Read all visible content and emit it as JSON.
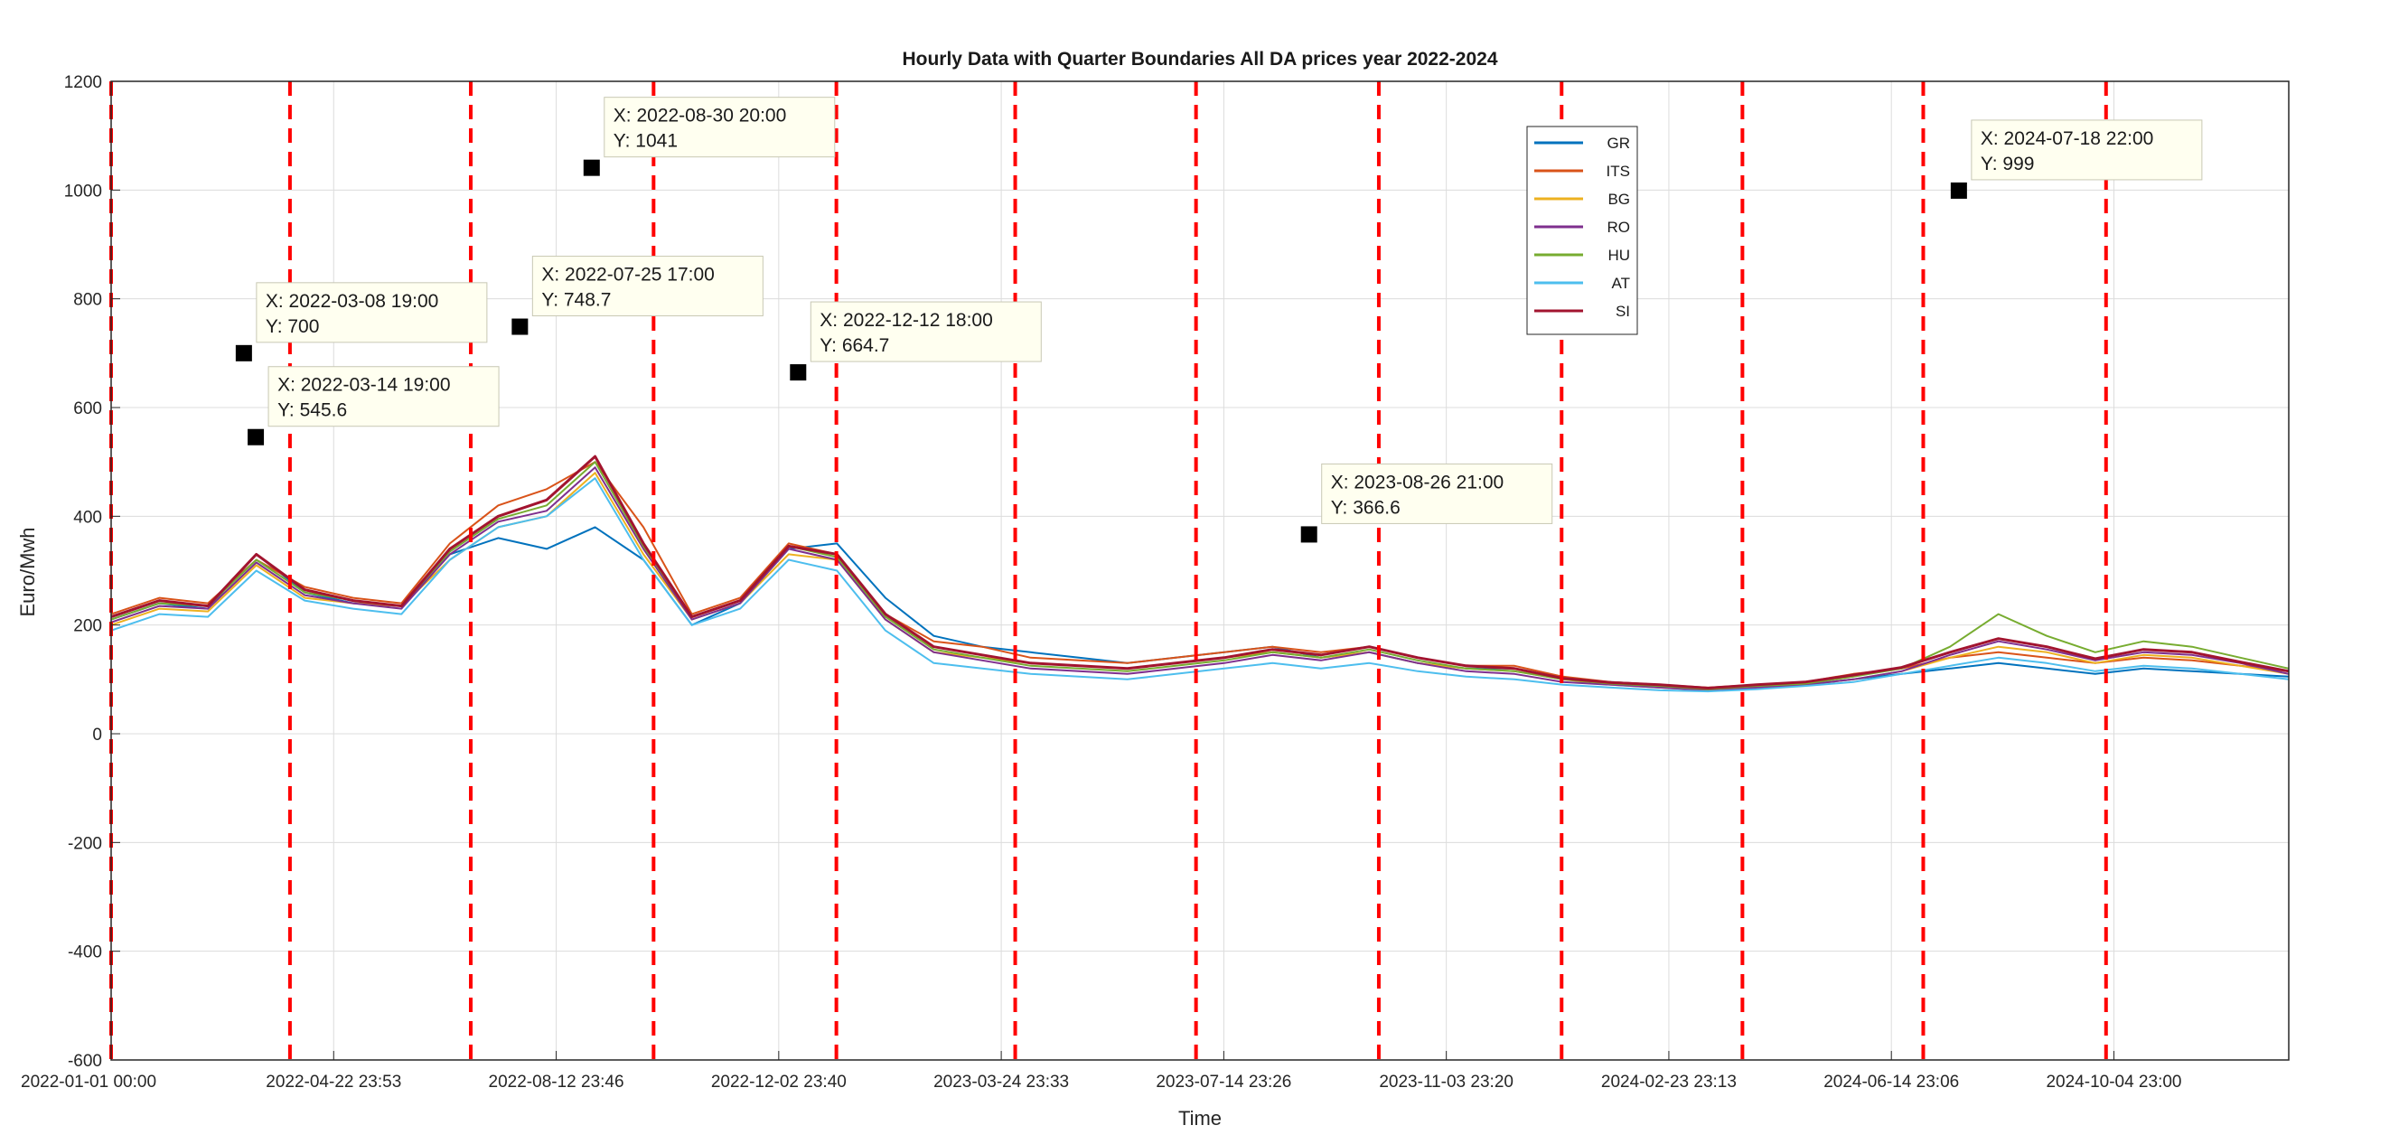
{
  "chart_data": {
    "type": "line",
    "title": "Hourly Data with Quarter Boundaries All DA prices year 2022-2024",
    "xlabel": "Time",
    "ylabel": "Euro/Mwh",
    "xlim": [
      "2022-01-01 00:00",
      "2024-12-31 23:00"
    ],
    "ylim": [
      -600,
      1200
    ],
    "yticks": [
      -600,
      -400,
      -200,
      0,
      200,
      400,
      600,
      800,
      1000,
      1200
    ],
    "xticks": [
      {
        "date": "2022-01-01 00:00",
        "label": "2022-01-01 00:00"
      },
      {
        "date": "2022-04-22 23:53",
        "label": "2022-04-22 23:53"
      },
      {
        "date": "2022-08-12 23:46",
        "label": "2022-08-12 23:46"
      },
      {
        "date": "2022-12-02 23:40",
        "label": "2022-12-02 23:40"
      },
      {
        "date": "2023-03-24 23:33",
        "label": "2023-03-24 23:33"
      },
      {
        "date": "2023-07-14 23:26",
        "label": "2023-07-14 23:26"
      },
      {
        "date": "2023-11-03 23:20",
        "label": "2023-11-03 23:20"
      },
      {
        "date": "2024-02-23 23:13",
        "label": "2024-02-23 23:13"
      },
      {
        "date": "2024-06-14 23:06",
        "label": "2024-06-14 23:06"
      },
      {
        "date": "2024-10-04 23:00",
        "label": "2024-10-04 23:00"
      }
    ],
    "grid": true,
    "legend_position": "top-right",
    "quarter_boundaries": [
      "2022-01-01",
      "2022-04-01",
      "2022-07-01",
      "2022-10-01",
      "2023-01-01",
      "2023-04-01",
      "2023-07-01",
      "2023-10-01",
      "2024-01-01",
      "2024-04-01",
      "2024-07-01",
      "2024-10-01"
    ],
    "boundary_color": "#ff0000",
    "series": [
      {
        "name": "GR",
        "color": "#0072bd",
        "values": [
          210,
          240,
          230,
          330,
          260,
          240,
          235,
          330,
          360,
          340,
          380,
          320,
          200,
          240,
          340,
          350,
          250,
          180,
          160,
          150,
          140,
          130,
          140,
          150,
          160,
          140,
          150,
          130,
          120,
          120,
          100,
          95,
          90,
          80,
          85,
          90,
          100,
          110,
          120,
          130,
          120,
          110,
          120,
          115,
          110,
          105
        ]
      },
      {
        "name": "ITS",
        "color": "#d95319",
        "values": [
          220,
          250,
          240,
          320,
          270,
          250,
          240,
          350,
          420,
          450,
          500,
          380,
          220,
          250,
          350,
          330,
          220,
          170,
          160,
          140,
          135,
          130,
          140,
          150,
          160,
          150,
          160,
          140,
          125,
          125,
          105,
          95,
          90,
          85,
          90,
          95,
          110,
          120,
          140,
          150,
          140,
          130,
          140,
          135,
          125,
          115
        ]
      },
      {
        "name": "BG",
        "color": "#edb120",
        "values": [
          200,
          230,
          225,
          310,
          250,
          240,
          235,
          320,
          380,
          400,
          480,
          330,
          210,
          240,
          330,
          320,
          210,
          150,
          140,
          130,
          125,
          120,
          130,
          140,
          150,
          140,
          150,
          130,
          120,
          115,
          100,
          90,
          85,
          80,
          85,
          90,
          100,
          115,
          140,
          160,
          150,
          130,
          145,
          140,
          125,
          110
        ]
      },
      {
        "name": "RO",
        "color": "#7e2f8e",
        "values": [
          205,
          235,
          230,
          315,
          255,
          240,
          230,
          330,
          390,
          410,
          490,
          340,
          210,
          240,
          340,
          320,
          210,
          150,
          135,
          120,
          115,
          110,
          120,
          130,
          145,
          135,
          150,
          130,
          115,
          110,
          95,
          90,
          85,
          80,
          85,
          90,
          100,
          115,
          145,
          170,
          155,
          135,
          150,
          145,
          130,
          110
        ]
      },
      {
        "name": "HU",
        "color": "#77ac30",
        "values": [
          210,
          240,
          235,
          320,
          260,
          245,
          235,
          335,
          395,
          420,
          500,
          345,
          215,
          245,
          345,
          325,
          215,
          155,
          140,
          125,
          120,
          115,
          125,
          135,
          150,
          140,
          155,
          135,
          120,
          115,
          100,
          92,
          88,
          82,
          88,
          92,
          105,
          120,
          160,
          220,
          180,
          150,
          170,
          160,
          140,
          120
        ]
      },
      {
        "name": "AT",
        "color": "#4dbeee",
        "values": [
          190,
          220,
          215,
          300,
          245,
          230,
          220,
          320,
          380,
          400,
          470,
          320,
          200,
          230,
          320,
          300,
          190,
          130,
          120,
          110,
          105,
          100,
          110,
          120,
          130,
          120,
          130,
          115,
          105,
          100,
          90,
          85,
          80,
          78,
          82,
          88,
          95,
          110,
          125,
          140,
          130,
          115,
          125,
          120,
          110,
          100
        ]
      },
      {
        "name": "SI",
        "color": "#a2142f",
        "values": [
          215,
          245,
          235,
          330,
          265,
          245,
          235,
          340,
          400,
          430,
          510,
          350,
          215,
          245,
          345,
          330,
          220,
          160,
          145,
          130,
          125,
          120,
          130,
          140,
          155,
          145,
          160,
          140,
          125,
          120,
          102,
          94,
          90,
          84,
          90,
          95,
          108,
          122,
          150,
          175,
          160,
          138,
          155,
          150,
          132,
          115
        ]
      }
    ],
    "datatips": [
      {
        "x": "2022-03-08 19:00",
        "y": 700,
        "label_x": "X: 2022-03-08 19:00",
        "label_y": "Y: 700"
      },
      {
        "x": "2022-03-14 19:00",
        "y": 545.6,
        "label_x": "X: 2022-03-14 19:00",
        "label_y": "Y: 545.6"
      },
      {
        "x": "2022-07-25 17:00",
        "y": 748.7,
        "label_x": "X: 2022-07-25 17:00",
        "label_y": "Y: 748.7"
      },
      {
        "x": "2022-08-30 20:00",
        "y": 1041,
        "label_x": "X: 2022-08-30 20:00",
        "label_y": "Y: 1041"
      },
      {
        "x": "2022-12-12 18:00",
        "y": 664.7,
        "label_x": "X: 2022-12-12 18:00",
        "label_y": "Y: 664.7"
      },
      {
        "x": "2023-08-26 21:00",
        "y": 366.6,
        "label_x": "X: 2023-08-26 21:00",
        "label_y": "Y: 366.6"
      },
      {
        "x": "2024-07-18 22:00",
        "y": 999,
        "label_x": "X: 2024-07-18 22:00",
        "label_y": "Y: 999"
      }
    ]
  }
}
